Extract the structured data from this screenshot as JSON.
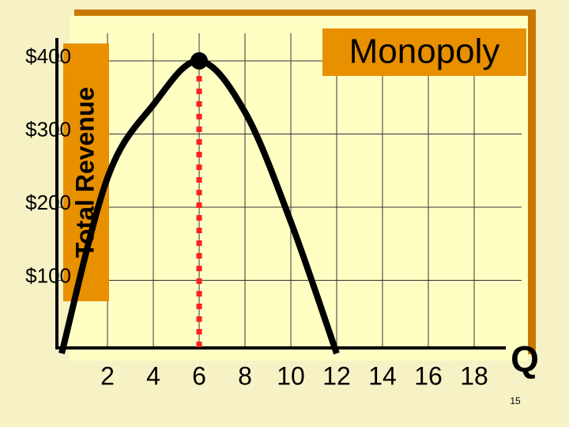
{
  "chart_data": {
    "type": "line",
    "title": "Monopoly",
    "y_label": "Total Revenue",
    "x_label": "Q",
    "x": [
      0,
      2,
      4,
      6,
      8,
      10,
      12
    ],
    "series": [
      {
        "color": "#000000",
        "values": [
          0,
          240,
          340,
          400,
          330,
          180,
          0
        ]
      }
    ],
    "xlim": [
      0,
      20
    ],
    "xticks": [
      2,
      4,
      6,
      8,
      10,
      12,
      14,
      16,
      18
    ],
    "ylim": [
      0,
      450
    ],
    "yticks": [
      {
        "value": 100,
        "label": "$100"
      },
      {
        "value": 200,
        "label": "$200"
      },
      {
        "value": 300,
        "label": "$300"
      },
      {
        "value": 400,
        "label": "$400"
      }
    ],
    "grid": true,
    "peak_line": {
      "x": 6,
      "color": "#ff2020"
    }
  },
  "slide": {
    "page_number": "15"
  }
}
